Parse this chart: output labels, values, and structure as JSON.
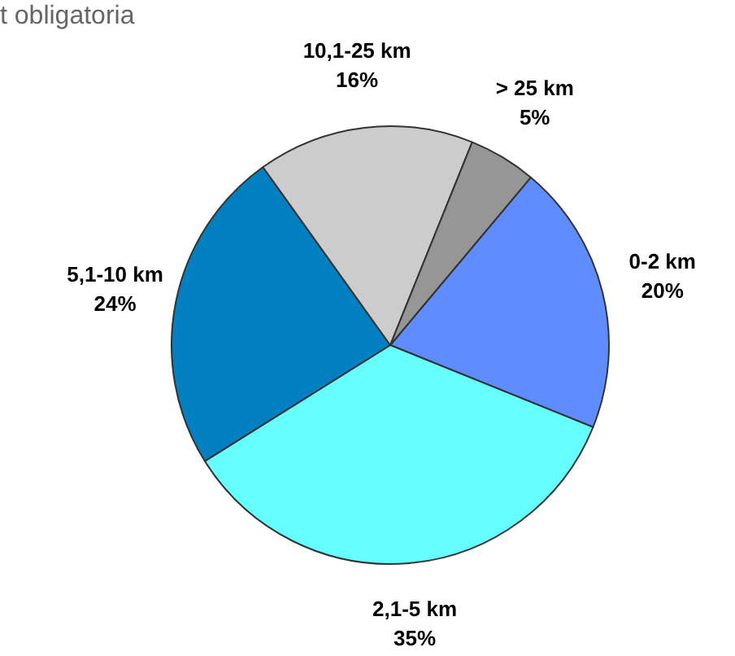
{
  "chart_data": {
    "type": "pie",
    "title": "t obligatoria",
    "categories": [
      "0-2 km",
      "2,1-5 km",
      "5,1-10 km",
      "10,1-25 km",
      "> 25 km"
    ],
    "values": [
      20,
      35,
      24,
      16,
      5
    ],
    "value_labels": [
      "20%",
      "35%",
      "24%",
      "16%",
      "5%"
    ],
    "colors": [
      "#5f8cff",
      "#66ffff",
      "#0080c0",
      "#cccccc",
      "#969696"
    ]
  }
}
